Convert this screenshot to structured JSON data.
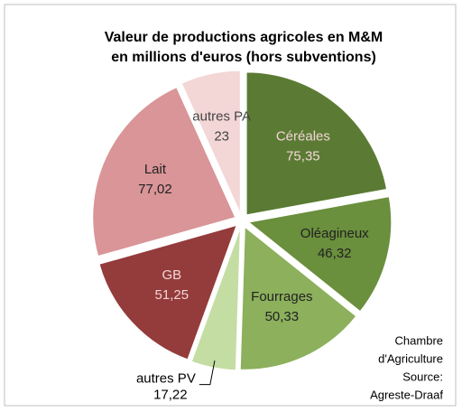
{
  "chart_data": {
    "type": "pie",
    "title": "Valeur de productions agricoles en M&M",
    "subtitle": "en millions d'euros (hors subventions)",
    "categories": [
      "Céréales",
      "Oléagineux",
      "Fourrages",
      "autres PV",
      "GB",
      "Lait",
      "autres PA"
    ],
    "values": [
      75.35,
      46.32,
      50.33,
      17.22,
      51.25,
      77.02,
      23
    ],
    "value_labels": [
      "75,35",
      "46,32",
      "50,33",
      "17,22",
      "51,25",
      "77,02",
      "23"
    ],
    "colors": [
      "#5b7b34",
      "#6a8f3d",
      "#8cb05c",
      "#c4dda3",
      "#943b3b",
      "#d99597",
      "#f3d6d6"
    ],
    "annotation": [
      "Chambre",
      "d'Agriculture",
      "Source:",
      "Agreste-Draaf"
    ]
  }
}
